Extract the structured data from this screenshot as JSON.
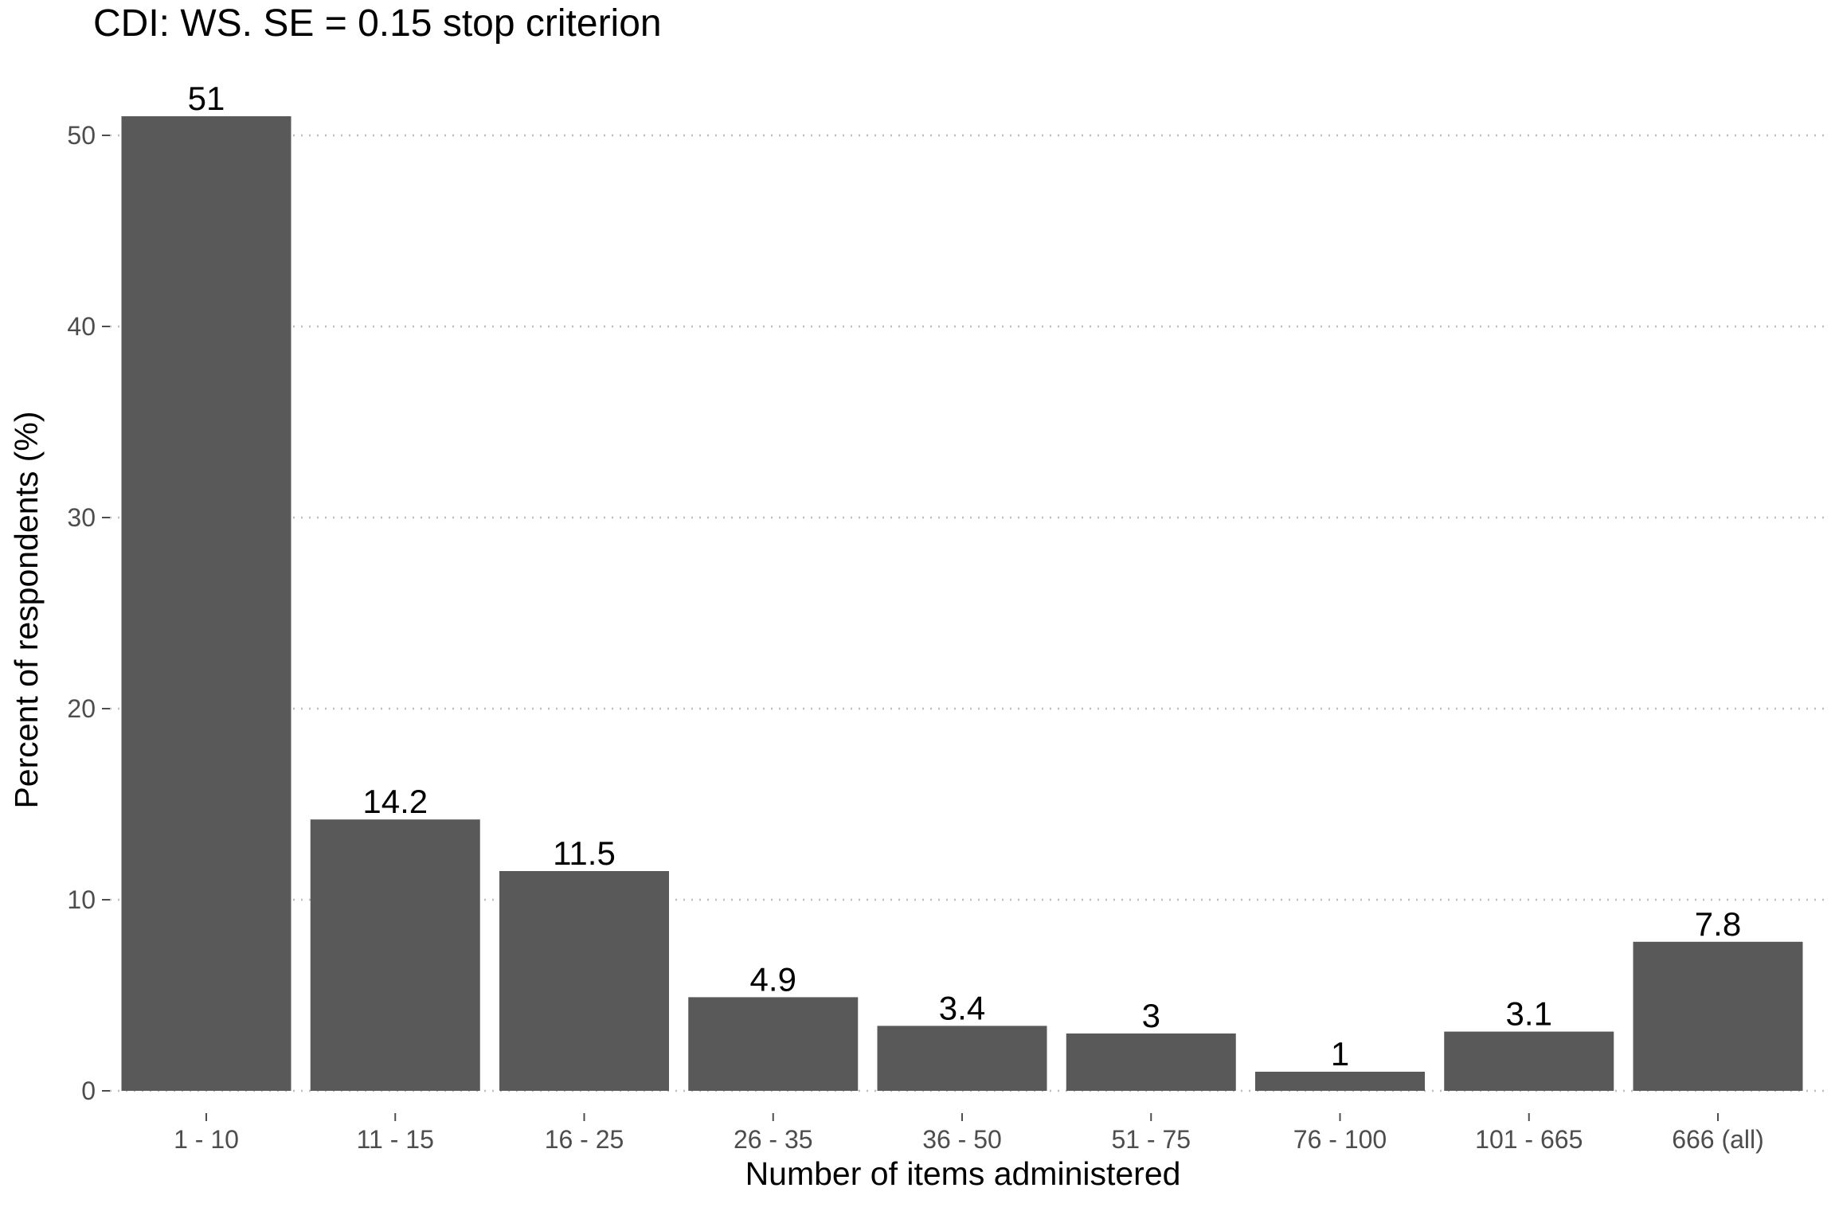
{
  "chart_data": {
    "type": "bar",
    "title": "CDI: WS. SE = 0.15 stop criterion",
    "xlabel": "Number of items administered",
    "ylabel": "Percent of respondents (%)",
    "categories": [
      "1 - 10",
      "11 - 15",
      "16 - 25",
      "26 - 35",
      "36 - 50",
      "51 - 75",
      "76 - 100",
      "101 - 665",
      "666 (all)"
    ],
    "values": [
      51,
      14.2,
      11.5,
      4.9,
      3.4,
      3,
      1,
      3.1,
      7.8
    ],
    "data_labels": [
      "51",
      "14.2",
      "11.5",
      "4.9",
      "3.4",
      "3",
      "1",
      "3.1",
      "7.8"
    ],
    "yticks": [
      0,
      10,
      20,
      30,
      40,
      50
    ],
    "ylim": [
      0,
      53.5
    ],
    "grid": "horizontal dotted",
    "legend": "none",
    "colors": {
      "bar": "#595959",
      "grid": "#bdbdbd"
    }
  }
}
